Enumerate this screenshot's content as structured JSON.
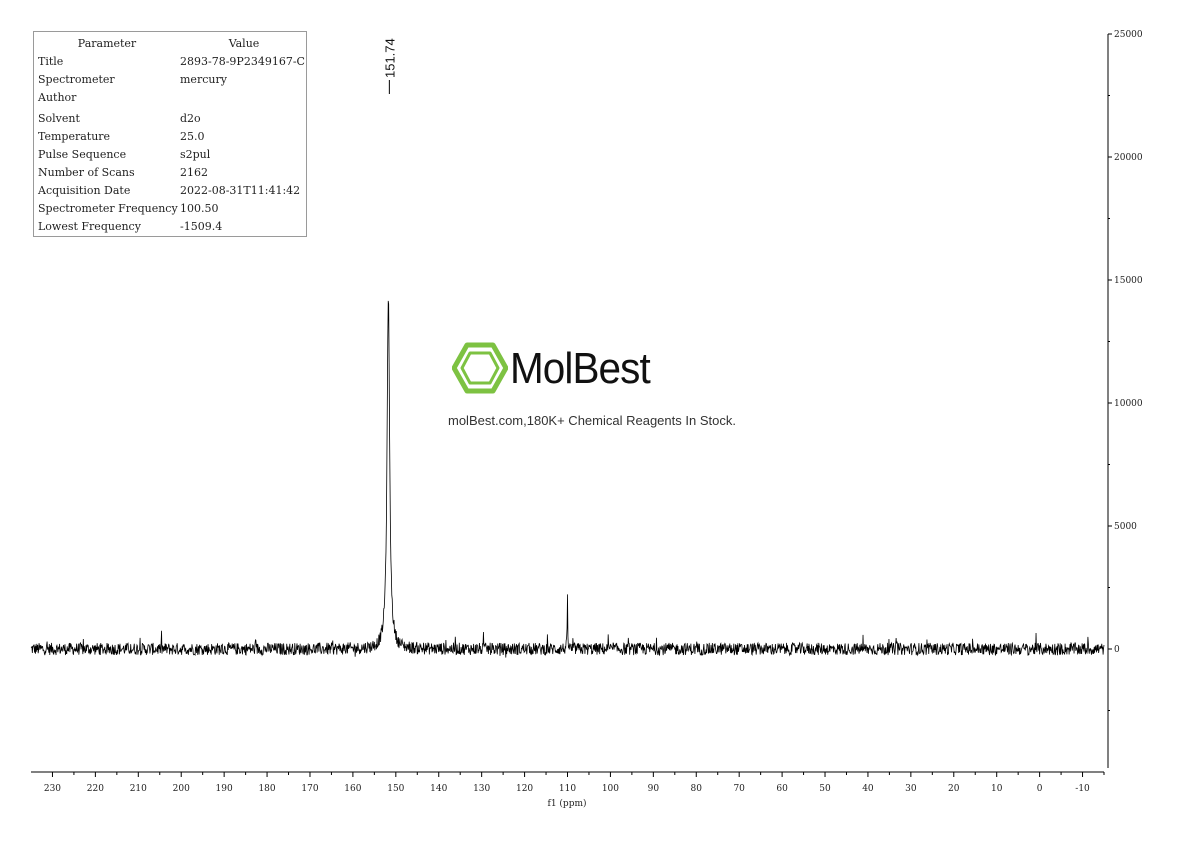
{
  "parameters": {
    "header": {
      "parameter": "Parameter",
      "value": "Value"
    },
    "rows": [
      {
        "key": "Title",
        "value": "2893-78-9P2349167-C"
      },
      {
        "key": "Spectrometer",
        "value": "mercury"
      },
      {
        "key": "Author",
        "value": ""
      },
      {
        "key": "Solvent",
        "value": "d2o"
      },
      {
        "key": "Temperature",
        "value": "25.0"
      },
      {
        "key": "Pulse Sequence",
        "value": "s2pul"
      },
      {
        "key": "Number of Scans",
        "value": "2162"
      },
      {
        "key": "Acquisition Date",
        "value": "2022-08-31T11:41:42"
      },
      {
        "key": "Spectrometer Frequency",
        "value": "100.50"
      },
      {
        "key": "Lowest Frequency",
        "value": "-1509.4"
      }
    ]
  },
  "watermark": {
    "logo_text": "MolBest",
    "tagline": "molBest.com,180K+ Chemical Reagents In Stock.",
    "logo_color": "#7dc242"
  },
  "chart_data": {
    "type": "line",
    "xlabel": "f1 (ppm)",
    "ylabel": "",
    "x_reversed": true,
    "xlim": [
      235,
      -15
    ],
    "ylim": [
      -5000,
      25000
    ],
    "x_ticks": [
      230,
      220,
      210,
      200,
      190,
      180,
      170,
      160,
      150,
      140,
      130,
      120,
      110,
      100,
      90,
      80,
      70,
      60,
      50,
      40,
      30,
      20,
      10,
      0,
      -10
    ],
    "y_ticks": [
      0,
      5000,
      10000,
      15000,
      20000,
      25000
    ],
    "baseline": 0,
    "noise_amplitude": 500,
    "series": [
      {
        "peaks": [
          {
            "ppm": 151.74,
            "height": 14500
          },
          {
            "ppm": 110.0,
            "height": 1700
          }
        ]
      }
    ],
    "peak_labels": [
      "151.74"
    ],
    "grid": false,
    "line_color": "#000000"
  }
}
